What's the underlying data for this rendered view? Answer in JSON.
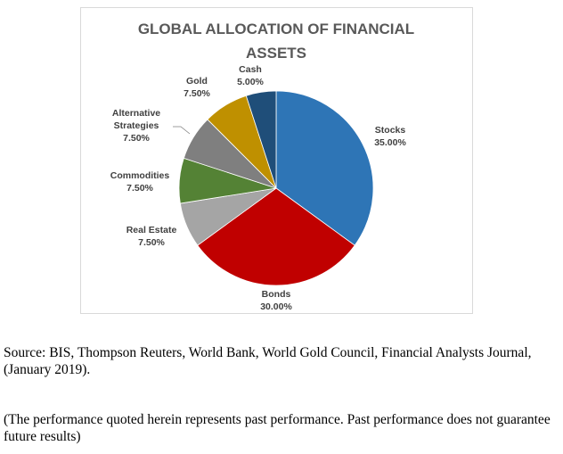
{
  "chart_data": {
    "type": "pie",
    "title": "GLOBAL ALLOCATION OF FINANCIAL ASSETS",
    "title_lines": [
      "GLOBAL ALLOCATION OF FINANCIAL",
      "ASSETS"
    ],
    "slices": [
      {
        "label": "Stocks",
        "value": 35.0,
        "value_label": "35.00%",
        "color": "#2E75B6"
      },
      {
        "label": "Bonds",
        "value": 30.0,
        "value_label": "30.00%",
        "color": "#C00000"
      },
      {
        "label": "Real Estate",
        "value": 7.5,
        "value_label": "7.50%",
        "color": "#A5A5A5"
      },
      {
        "label": "Commodities",
        "value": 7.5,
        "value_label": "7.50%",
        "color": "#548235"
      },
      {
        "label": "Alternative Strategies",
        "label_lines": [
          "Alternative",
          "Strategies"
        ],
        "value": 7.5,
        "value_label": "7.50%",
        "color": "#7F7F7F"
      },
      {
        "label": "Gold",
        "value": 7.5,
        "value_label": "7.50%",
        "color": "#BF9000"
      },
      {
        "label": "Cash",
        "value": 5.0,
        "value_label": "5.00%",
        "color": "#1F4E79"
      }
    ],
    "start_angle": "12 o'clock",
    "direction": "clockwise",
    "legend": "none"
  },
  "source": "Source: BIS, Thompson Reuters, World Bank, World Gold Council, Financial Analysts Journal, (January 2019).",
  "disclaimer": "(The performance quoted herein represents past performance. Past performance does not guarantee future results)"
}
